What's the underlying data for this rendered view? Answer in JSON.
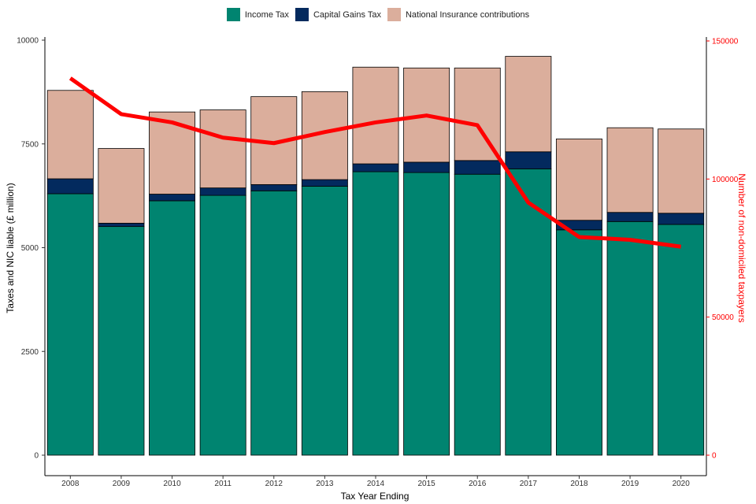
{
  "chart_data": {
    "type": "bar",
    "stacked": true,
    "categories": [
      "2008",
      "2009",
      "2010",
      "2011",
      "2012",
      "2013",
      "2014",
      "2015",
      "2016",
      "2017",
      "2018",
      "2019",
      "2020"
    ],
    "series": [
      {
        "name": "Income Tax",
        "color": "#008470",
        "values": [
          6300,
          5510,
          6130,
          6260,
          6370,
          6480,
          6830,
          6810,
          6770,
          6900,
          5430,
          5630,
          5560
        ]
      },
      {
        "name": "Capital Gains Tax",
        "color": "#032A5E",
        "values": [
          360,
          80,
          160,
          180,
          150,
          160,
          190,
          250,
          330,
          410,
          230,
          220,
          270
        ]
      },
      {
        "name": "National Insurance contributions",
        "color": "#DBAE9C",
        "values": [
          2130,
          1800,
          1980,
          1880,
          2120,
          2120,
          2330,
          2270,
          2230,
          2300,
          1960,
          2040,
          2030
        ]
      }
    ],
    "line": {
      "color": "#FF0000",
      "values": [
        136500,
        123500,
        120500,
        115000,
        113000,
        117000,
        120500,
        123000,
        119500,
        91500,
        79000,
        78000,
        75500
      ]
    },
    "xlabel": "Tax Year Ending",
    "ylabel": "Taxes and NIC liable (£ million)",
    "y2label": "Number of non-domiciled taxpayers",
    "ylim": [
      0,
      10000
    ],
    "y2lim": [
      0,
      150000
    ],
    "yticks": [
      0,
      2500,
      5000,
      7500,
      10000
    ],
    "y2ticks": [
      0,
      50000,
      100000,
      150000
    ],
    "legend_position": "top-center",
    "grid": false
  }
}
